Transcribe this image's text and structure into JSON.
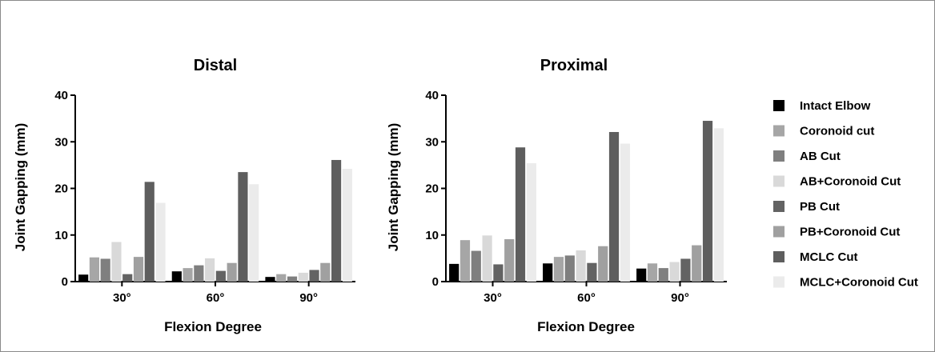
{
  "chart_data": [
    {
      "type": "bar",
      "title": "Distal",
      "xlabel": "Flexion Degree",
      "ylabel": "Joint Gapping (mm)",
      "ylim": [
        0,
        40
      ],
      "yticks": [
        0,
        10,
        20,
        30,
        40
      ],
      "categories": [
        "30°",
        "60°",
        "90°"
      ],
      "series": [
        {
          "name": "Intact Elbow",
          "values": [
            1.5,
            2.2,
            1.0
          ]
        },
        {
          "name": "Coronoid cut",
          "values": [
            5.2,
            2.9,
            1.6
          ]
        },
        {
          "name": "AB Cut",
          "values": [
            4.9,
            3.5,
            1.1
          ]
        },
        {
          "name": "AB+Coronoid Cut",
          "values": [
            8.5,
            5.0,
            1.9
          ]
        },
        {
          "name": "PB Cut",
          "values": [
            1.6,
            2.3,
            2.5
          ]
        },
        {
          "name": "PB+Coronoid Cut",
          "values": [
            5.3,
            4.0,
            4.0
          ]
        },
        {
          "name": "MCLC Cut",
          "values": [
            21.4,
            23.5,
            26.1
          ]
        },
        {
          "name": "MCLC+Coronoid Cut",
          "values": [
            16.9,
            20.9,
            24.2
          ]
        }
      ]
    },
    {
      "type": "bar",
      "title": "Proximal",
      "xlabel": "Flexion Degree",
      "ylabel": "Joint Gapping (mm)",
      "ylim": [
        0,
        40
      ],
      "yticks": [
        0,
        10,
        20,
        30,
        40
      ],
      "categories": [
        "30°",
        "60°",
        "90°"
      ],
      "series": [
        {
          "name": "Intact Elbow",
          "values": [
            3.8,
            3.9,
            2.8
          ]
        },
        {
          "name": "Coronoid cut",
          "values": [
            8.9,
            5.3,
            3.9
          ]
        },
        {
          "name": "AB Cut",
          "values": [
            6.6,
            5.6,
            2.9
          ]
        },
        {
          "name": "AB+Coronoid Cut",
          "values": [
            9.9,
            6.7,
            4.2
          ]
        },
        {
          "name": "PB Cut",
          "values": [
            3.7,
            4.0,
            4.9
          ]
        },
        {
          "name": "PB+Coronoid Cut",
          "values": [
            9.1,
            7.6,
            7.8
          ]
        },
        {
          "name": "MCLC Cut",
          "values": [
            28.8,
            32.1,
            34.5
          ]
        },
        {
          "name": "MCLC+Coronoid Cut",
          "values": [
            25.4,
            29.6,
            32.9
          ]
        }
      ]
    }
  ],
  "legend": {
    "position": "right",
    "items": [
      {
        "label": "Intact Elbow",
        "color": "#000000"
      },
      {
        "label": "Coronoid cut",
        "color": "#a6a6a6"
      },
      {
        "label": "AB Cut",
        "color": "#7f7f7f"
      },
      {
        "label": "AB+Coronoid Cut",
        "color": "#d9d9d9"
      },
      {
        "label": "PB Cut",
        "color": "#636363"
      },
      {
        "label": "PB+Coronoid Cut",
        "color": "#a0a0a0"
      },
      {
        "label": "MCLC Cut",
        "color": "#5e5e5e"
      },
      {
        "label": "MCLC+Coronoid Cut",
        "color": "#ebebeb"
      }
    ]
  },
  "series_colors": [
    "#000000",
    "#a6a6a6",
    "#7f7f7f",
    "#d9d9d9",
    "#636363",
    "#a0a0a0",
    "#5e5e5e",
    "#ebebeb"
  ]
}
